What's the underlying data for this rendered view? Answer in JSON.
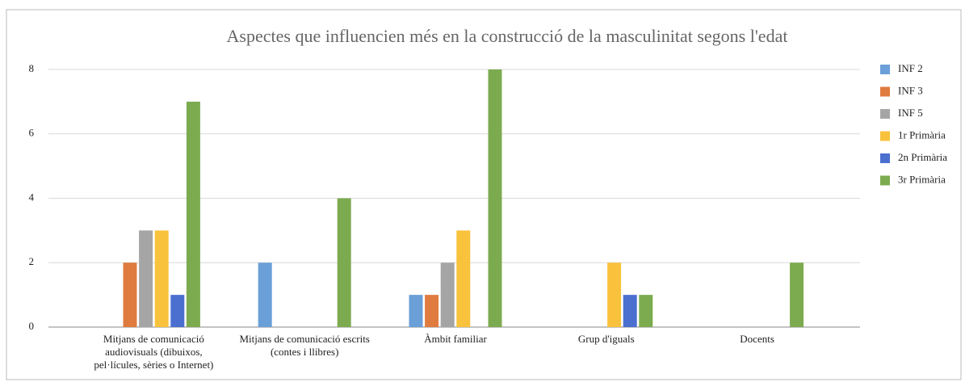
{
  "chart_data": {
    "type": "bar",
    "title": "Aspectes que influencien més en la construcció de la masculinitat segons l'edat",
    "categories": [
      "Mitjans de comunicació audiovisuals (dibuixos, pel·lícules, sèries o Internet)",
      "Mitjans de comunicació escrits (contes i llibres)",
      "Àmbit familiar",
      "Grup d'iguals",
      "Docents"
    ],
    "series": [
      {
        "name": "INF 2",
        "color": "#6a9fd8",
        "values": [
          0,
          2,
          1,
          0,
          0
        ]
      },
      {
        "name": "INF 3",
        "color": "#e07b3f",
        "values": [
          2,
          0,
          1,
          0,
          0
        ]
      },
      {
        "name": "INF 5",
        "color": "#a5a5a5",
        "values": [
          3,
          0,
          2,
          0,
          0
        ]
      },
      {
        "name": "1r Primària",
        "color": "#f9c23c",
        "values": [
          3,
          0,
          3,
          2,
          0
        ]
      },
      {
        "name": "2n Primària",
        "color": "#4a6fcf",
        "values": [
          1,
          0,
          0,
          1,
          0
        ]
      },
      {
        "name": "3r Primària",
        "color": "#7cab4f",
        "values": [
          7,
          4,
          8,
          1,
          2
        ]
      }
    ],
    "ylim": [
      0,
      8
    ],
    "yticks": [
      0,
      2,
      4,
      6,
      8
    ],
    "grid": true,
    "legend": "right"
  }
}
